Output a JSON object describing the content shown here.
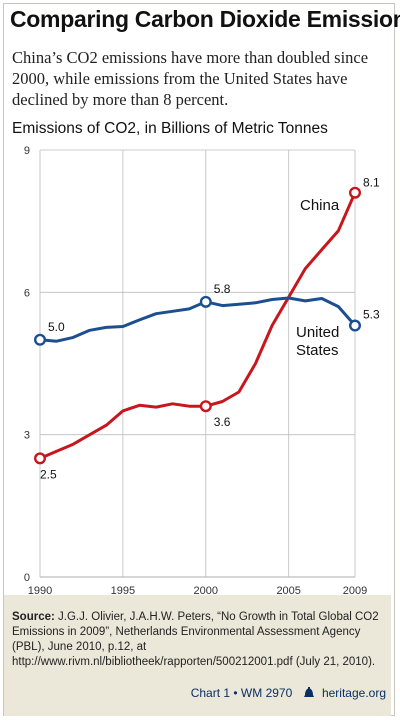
{
  "title": "Comparing Carbon Dioxide Emissions",
  "subtitle": "China’s CO2 emissions have more than doubled since 2000, while emissions from the United States have declined by more than 8 percent.",
  "source": {
    "label": "Source:",
    "text": "J.G.J. Olivier, J.A.H.W. Peters, “No Growth in Total Global CO2 Emissions in 2009”, Netherlands Environmental Assessment Agency (PBL), June 2010, p.12, at http://www.rivm.nl/bibliotheek/rapporten/500212001.pdf (July 21, 2010)."
  },
  "credit": {
    "chart": "Chart 1 • WM 2970",
    "site": "heritage.org"
  },
  "colors": {
    "china": "#c8161d",
    "us": "#1c4f8f",
    "grid": "#bdbdbd",
    "footer_bg": "#ebe7d9"
  },
  "chart_data": {
    "type": "line",
    "ylabel": "Emissions of CO2, in Billions of Metric Tonnes",
    "xlabel": "",
    "xlim": [
      1990,
      2009
    ],
    "ylim": [
      0,
      9
    ],
    "x_ticks": [
      1990,
      1995,
      2000,
      2005,
      2009
    ],
    "y_ticks": [
      0,
      3,
      6,
      9
    ],
    "grid": true,
    "x": [
      1990,
      1991,
      1992,
      1993,
      1994,
      1995,
      1996,
      1997,
      1998,
      1999,
      2000,
      2001,
      2002,
      2003,
      2004,
      2005,
      2006,
      2007,
      2008,
      2009
    ],
    "series": [
      {
        "name": "China",
        "color": "#c8161d",
        "values": [
          2.5,
          2.65,
          2.8,
          3.0,
          3.2,
          3.5,
          3.62,
          3.58,
          3.65,
          3.6,
          3.6,
          3.7,
          3.9,
          4.5,
          5.3,
          5.9,
          6.5,
          6.9,
          7.3,
          8.1
        ]
      },
      {
        "name": "United States",
        "color": "#1c4f8f",
        "values": [
          5.0,
          4.97,
          5.05,
          5.2,
          5.26,
          5.28,
          5.42,
          5.55,
          5.6,
          5.65,
          5.8,
          5.72,
          5.75,
          5.78,
          5.85,
          5.88,
          5.82,
          5.87,
          5.7,
          5.3
        ]
      }
    ],
    "series_labels": [
      {
        "series": "China",
        "lines": [
          "China"
        ]
      },
      {
        "series": "United States",
        "lines": [
          "United",
          "States"
        ]
      }
    ],
    "annotations": [
      {
        "series": "China",
        "x": 1990,
        "y": 2.5,
        "label": "2.5"
      },
      {
        "series": "China",
        "x": 2000,
        "y": 3.6,
        "label": "3.6"
      },
      {
        "series": "China",
        "x": 2009,
        "y": 8.1,
        "label": "8.1"
      },
      {
        "series": "United States",
        "x": 1990,
        "y": 5.0,
        "label": "5.0"
      },
      {
        "series": "United States",
        "x": 2000,
        "y": 5.8,
        "label": "5.8"
      },
      {
        "series": "United States",
        "x": 2009,
        "y": 5.3,
        "label": "5.3"
      }
    ]
  }
}
